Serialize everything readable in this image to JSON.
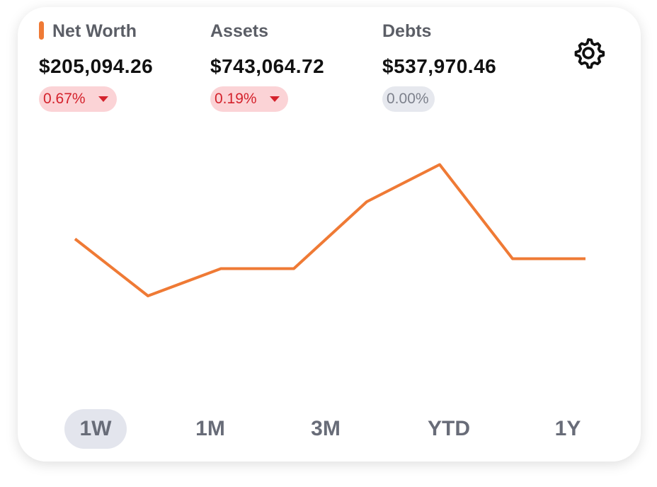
{
  "summary": [
    {
      "label": "Net Worth",
      "amount": "$205,094.26",
      "change": "0.67%",
      "trend": "down",
      "marker": true
    },
    {
      "label": "Assets",
      "amount": "$743,064.72",
      "change": "0.19%",
      "trend": "down",
      "marker": false
    },
    {
      "label": "Debts",
      "amount": "$537,970.46",
      "change": "0.00%",
      "trend": "flat",
      "marker": false
    }
  ],
  "chart_data": {
    "type": "line",
    "color": "#ef7a35",
    "values": [
      55,
      32,
      43,
      43,
      70,
      85,
      47,
      47
    ],
    "ylim": [
      0,
      100
    ]
  },
  "ranges": [
    "1W",
    "1M",
    "3M",
    "YTD",
    "1Y"
  ],
  "selected_range": 0
}
